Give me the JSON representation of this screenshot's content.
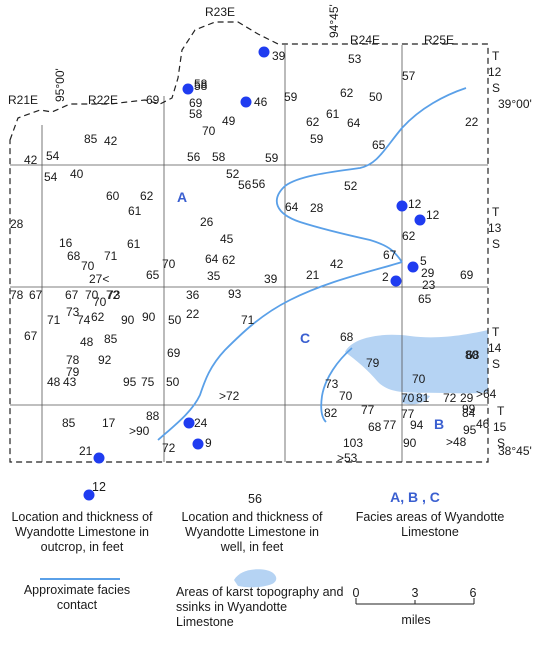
{
  "ranges": [
    "R21E",
    "R22E",
    "R23E",
    "R24E",
    "R25E"
  ],
  "townships": [
    {
      "line1": "T",
      "line2": "12",
      "line3": "S"
    },
    {
      "line1": "T",
      "line2": "13",
      "line3": "S"
    },
    {
      "line1": "T",
      "line2": "14",
      "line3": "S"
    },
    {
      "line1": "T",
      "line2": "15",
      "line3": "S"
    }
  ],
  "coords": {
    "lat_top": "39°00'",
    "lat_bottom": "38°45'",
    "lon_west": "95°00'",
    "lon_east": "94°45'"
  },
  "facies_areas": [
    "A",
    "B",
    "C"
  ],
  "outcrop_points": [
    "39",
    "58",
    "46",
    "12",
    "12",
    "5",
    "2",
    "24",
    "9",
    "21",
    "12"
  ],
  "well_values": [
    "53",
    "57",
    "69",
    "58",
    "69",
    "58",
    "59",
    "62",
    "50",
    "22",
    "85",
    "42",
    "54",
    "49",
    "70",
    "61",
    "64",
    "62",
    "59",
    "65",
    "42",
    "54",
    "40",
    "56",
    "58",
    "59",
    "52",
    "56",
    "56",
    "52",
    "28",
    "60",
    "62",
    "61",
    "64",
    "28",
    "26",
    "45",
    "62",
    "16",
    "68",
    "70",
    "71",
    "61",
    "70",
    "64",
    "62",
    "42",
    "67",
    "65",
    "35",
    "39",
    "21",
    "29",
    "23",
    "69",
    "68",
    "27<",
    "65",
    "78",
    "67",
    "67",
    "70",
    "72",
    "70",
    "73",
    "36",
    "93",
    "67",
    "71",
    "73",
    "74",
    "62",
    "90",
    "90",
    "50",
    "22",
    "71",
    "68",
    "48",
    "85",
    "69",
    "79",
    "80",
    "78",
    "92",
    "79",
    "48",
    "43",
    "95",
    "75",
    "50",
    "73",
    "70",
    "70",
    "77",
    "70",
    "81",
    "72",
    "29",
    ">64",
    ">72",
    "82",
    "77",
    "77",
    "84",
    "99",
    "85",
    "17",
    ">90",
    "88",
    "72",
    "68",
    "94",
    "95",
    "46",
    "103",
    "90",
    ">48",
    ">53"
  ],
  "legend": {
    "outcrop_example": "12",
    "outcrop_desc": "Location and thickness of Wyandotte Limestone in outcrop, in feet",
    "well_example": "56",
    "well_desc": "Location and thickness of Wyandotte Limestone in well, in feet",
    "facies_example": "A, B , C",
    "facies_desc": "Facies areas of Wyandotte Limestone",
    "contact_desc": "Approximate facies contact",
    "karst_desc": "Areas of karst topography and ssinks in Wyandotte Limestone",
    "scale_ticks": [
      "0",
      "3",
      "6"
    ],
    "scale_unit": "miles"
  },
  "colors": {
    "outcrop_dot": "#1f3cf0",
    "facies_line": "#5aa0e8",
    "karst_fill": "#b5d3f3",
    "facies_text": "#3a5fd0"
  }
}
